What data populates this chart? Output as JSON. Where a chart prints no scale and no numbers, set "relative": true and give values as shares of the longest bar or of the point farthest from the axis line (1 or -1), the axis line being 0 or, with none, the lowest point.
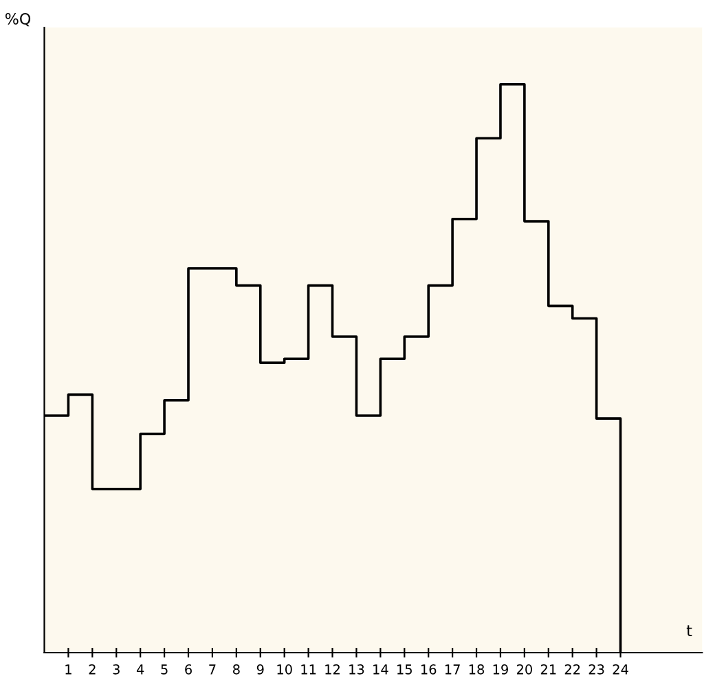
{
  "chart_data": {
    "type": "step",
    "relative": true,
    "xlabel": "t",
    "ylabel": "%Q",
    "x": [
      0,
      1,
      2,
      3,
      4,
      5,
      6,
      7,
      8,
      9,
      10,
      11,
      12,
      13,
      14,
      15,
      16,
      17,
      18,
      19,
      20,
      21,
      22,
      23,
      24
    ],
    "series": [
      {
        "color": "#000000",
        "values": [
          0.417,
          0.454,
          0.288,
          0.288,
          0.385,
          0.444,
          0.676,
          0.676,
          0.646,
          0.51,
          0.517,
          0.646,
          0.556,
          0.417,
          0.517,
          0.556,
          0.646,
          0.763,
          0.905,
          1,
          0.759,
          0.61,
          0.588,
          0.412,
          0
        ]
      }
    ],
    "xlim": [
      0,
      27.4
    ],
    "xticks": [
      1,
      2,
      3,
      4,
      5,
      6,
      7,
      8,
      9,
      10,
      11,
      12,
      13,
      14,
      15,
      16,
      17,
      18,
      19,
      20,
      21,
      22,
      23,
      24
    ],
    "tick_labels": "x",
    "grid": false,
    "legend": false
  }
}
